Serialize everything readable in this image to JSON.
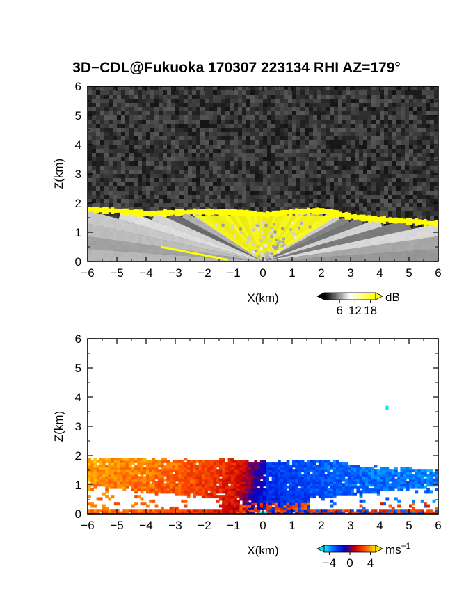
{
  "title": "3D−CDL@Fukuoka 170307 223134 RHI AZ=179°",
  "chart_data": [
    {
      "type": "heatmap",
      "panel": "backscatter",
      "xlabel": "X(km)",
      "ylabel": "Z(km)",
      "xlim": [
        -6,
        6
      ],
      "ylim": [
        0,
        6
      ],
      "xticks": [
        "−6",
        "−5",
        "−4",
        "−3",
        "−2",
        "−1",
        "0",
        "1",
        "2",
        "3",
        "4",
        "5",
        "6"
      ],
      "yticks": [
        "0",
        "1",
        "2",
        "3",
        "4",
        "5",
        "6"
      ],
      "colorbar": {
        "unit": "dB",
        "ticks": [
          "6",
          "12",
          "18"
        ],
        "tick_values": [
          6,
          12,
          18
        ],
        "range": [
          0,
          20
        ],
        "colors": [
          "#000000",
          "#ffffff",
          "#ffff00"
        ]
      },
      "features": {
        "noise_background": "#2a2a2a",
        "high_signal_top_km": [
          [
            -6,
            1.8
          ],
          [
            -5,
            1.75
          ],
          [
            -4,
            1.65
          ],
          [
            -3,
            1.7
          ],
          [
            -2,
            1.72
          ],
          [
            -1,
            1.7
          ],
          [
            0,
            1.62
          ],
          [
            1,
            1.72
          ],
          [
            2,
            1.75
          ],
          [
            3,
            1.55
          ],
          [
            4,
            1.45
          ],
          [
            5,
            1.4
          ],
          [
            6,
            1.3
          ]
        ],
        "yellow_color": "#ffff00",
        "radial_beams_origin_km": [
          0,
          0
        ]
      }
    },
    {
      "type": "heatmap",
      "panel": "radial_velocity",
      "xlabel": "X(km)",
      "ylabel": "Z(km)",
      "xlim": [
        -6,
        6
      ],
      "ylim": [
        0,
        6
      ],
      "xticks": [
        "−6",
        "−5",
        "−4",
        "−3",
        "−2",
        "−1",
        "0",
        "1",
        "2",
        "3",
        "4",
        "5",
        "6"
      ],
      "yticks": [
        "0",
        "1",
        "2",
        "3",
        "4",
        "5",
        "6"
      ],
      "colorbar": {
        "unit": "ms",
        "unit_exponent": "−1",
        "ticks": [
          "−4",
          "0",
          "4"
        ],
        "tick_values": [
          -4,
          0,
          4
        ],
        "range": [
          -5,
          5
        ],
        "colors": [
          "#00e5ff",
          "#0050ff",
          "#0000c8",
          "#c80000",
          "#ff5000",
          "#ffdd00"
        ]
      },
      "features": {
        "data_top_km": [
          [
            -6,
            1.85
          ],
          [
            -5,
            1.9
          ],
          [
            -4,
            1.85
          ],
          [
            -3,
            1.8
          ],
          [
            -2,
            1.82
          ],
          [
            -1,
            1.8
          ],
          [
            0,
            1.75
          ],
          [
            1,
            1.78
          ],
          [
            2,
            1.8
          ],
          [
            3,
            1.65
          ],
          [
            4,
            1.55
          ],
          [
            5,
            1.5
          ],
          [
            6,
            1.45
          ]
        ],
        "velocity_by_x_km": [
          [
            -6,
            3.5
          ],
          [
            -5,
            3.2
          ],
          [
            -4,
            3.0
          ],
          [
            -3,
            2.6
          ],
          [
            -2,
            2.0
          ],
          [
            -1,
            1.2
          ],
          [
            0,
            -1.8
          ],
          [
            1,
            -2.2
          ],
          [
            2,
            -2.6
          ],
          [
            3,
            -2.8
          ],
          [
            4,
            -3.0
          ],
          [
            5,
            -3.0
          ],
          [
            6,
            -3.2
          ]
        ]
      }
    }
  ]
}
